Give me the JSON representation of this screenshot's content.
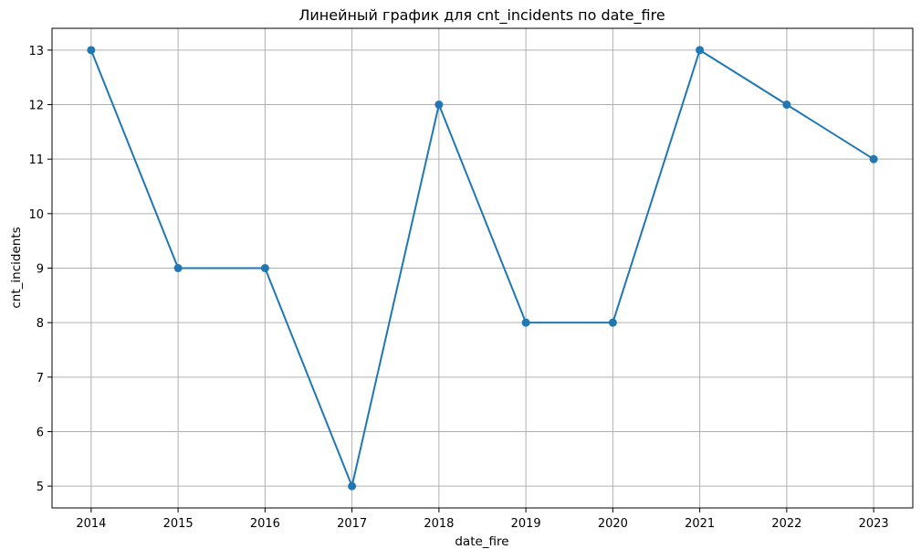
{
  "chart_data": {
    "type": "line",
    "title": "Линейный график для cnt_incidents по date_fire",
    "xlabel": "date_fire",
    "ylabel": "cnt_incidents",
    "x": [
      2014,
      2015,
      2016,
      2017,
      2018,
      2019,
      2020,
      2021,
      2022,
      2023
    ],
    "series": [
      {
        "values": [
          13,
          9,
          9,
          5,
          12,
          8,
          8,
          13,
          12,
          11
        ]
      }
    ],
    "xticks": [
      "2014",
      "2015",
      "2016",
      "2017",
      "2018",
      "2019",
      "2020",
      "2021",
      "2022",
      "2023"
    ],
    "yticks": [
      "5",
      "6",
      "7",
      "8",
      "9",
      "10",
      "11",
      "12",
      "13"
    ],
    "xlim": [
      2013.55,
      2023.45
    ],
    "ylim": [
      4.6,
      13.4
    ],
    "grid": true,
    "marker": "circle",
    "line_color": "#1f77b4",
    "grid_color": "#b0b0b0"
  }
}
